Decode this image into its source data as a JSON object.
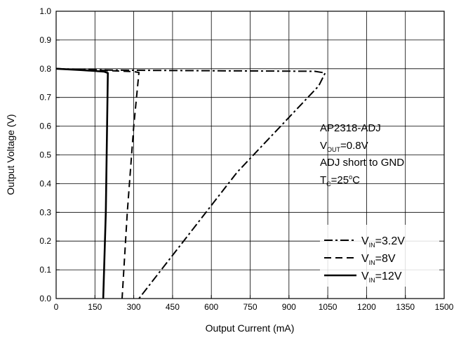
{
  "chart_data": {
    "type": "line",
    "title": "",
    "xlabel": "Output Current (mA)",
    "ylabel": "Output Voltage (V)",
    "xlim": [
      0,
      1500
    ],
    "ylim": [
      0,
      1.0
    ],
    "xticks": [
      "0",
      "150",
      "300",
      "450",
      "600",
      "750",
      "900",
      "1050",
      "1200",
      "1350",
      "1500"
    ],
    "yticks": [
      "0.0",
      "0.1",
      "0.2",
      "0.3",
      "0.4",
      "0.5",
      "0.6",
      "0.7",
      "0.8",
      "0.9",
      "1.0"
    ],
    "grid": true,
    "annotation": {
      "line1": "AP2318-ADJ",
      "line2_main": "V",
      "line2_sub": "OUT",
      "line2_rest": "=0.8V",
      "line3": "ADJ short to GND",
      "line4_main": "T",
      "line4_sub": "C",
      "line4_rest": "=25",
      "line4_sup": "o",
      "line4_end": "C"
    },
    "legend_position": "bottom-right",
    "series": [
      {
        "name_main": "V",
        "name_sub": "IN",
        "name_rest": "=3.2V",
        "style": "dashdot",
        "x": [
          0,
          200,
          600,
          1000,
          1040,
          1015,
          700,
          320
        ],
        "y": [
          0.8,
          0.795,
          0.793,
          0.791,
          0.785,
          0.74,
          0.44,
          0.0
        ]
      },
      {
        "name_main": "V",
        "name_sub": "IN",
        "name_rest": "=8V",
        "style": "dashed",
        "x": [
          0,
          150,
          300,
          320,
          300,
          275,
          255
        ],
        "y": [
          0.8,
          0.795,
          0.79,
          0.787,
          0.6,
          0.3,
          0.0
        ]
      },
      {
        "name_main": "V",
        "name_sub": "IN",
        "name_rest": "=12V",
        "style": "solid",
        "x": [
          0,
          100,
          185,
          200,
          197,
          192,
          182
        ],
        "y": [
          0.8,
          0.795,
          0.79,
          0.785,
          0.6,
          0.3,
          0.0
        ]
      }
    ]
  }
}
